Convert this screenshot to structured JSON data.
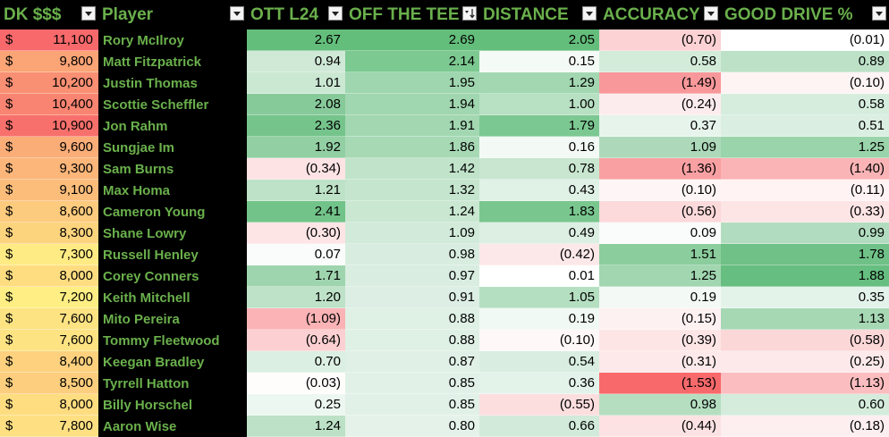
{
  "headers": [
    {
      "key": "dk",
      "label": "DK $$$",
      "filter": "dropdown"
    },
    {
      "key": "player",
      "label": "Player",
      "filter": "dropdown"
    },
    {
      "key": "ott_l24",
      "label": "OTT L24",
      "filter": "dropdown"
    },
    {
      "key": "off_the_tee",
      "label": "OFF THE TEE",
      "filter": "sort-descending"
    },
    {
      "key": "distance",
      "label": "DISTANCE",
      "filter": "dropdown"
    },
    {
      "key": "accuracy",
      "label": "ACCURACY",
      "filter": "dropdown"
    },
    {
      "key": "good_drive",
      "label": "GOOD DRIVE %",
      "filter": "dropdown"
    }
  ],
  "currency_symbol": "$",
  "colors": {
    "header_bg": "#000000",
    "header_text": "#6ab04c",
    "player_bg": "#000000",
    "player_text": "#6ab04c",
    "scale_low": "#f8696b",
    "scale_mid": "#ffffff",
    "scale_high": "#63be7b"
  },
  "rows": [
    {
      "dk": "11,100",
      "player": "Rory McIlroy",
      "ott_l24": "2.67",
      "off_the_tee": "2.69",
      "distance": "2.05",
      "accuracy": "(0.70)",
      "good_drive": "(0.01)",
      "fills": {
        "dk": "#f8696b",
        "ott_l24": "#63be7b",
        "off_the_tee": "#63be7b",
        "distance": "#63be7b",
        "accuracy": "#fcd2d4",
        "good_drive": "#ffffff"
      }
    },
    {
      "dk": "9,800",
      "player": "Matt Fitzpatrick",
      "ott_l24": "0.94",
      "off_the_tee": "2.14",
      "distance": "0.15",
      "accuracy": "0.58",
      "good_drive": "0.89",
      "fills": {
        "dk": "#fba476",
        "ott_l24": "#cfe9d6",
        "off_the_tee": "#7cc991",
        "distance": "#f4faf6",
        "accuracy": "#d3ecda",
        "good_drive": "#bde1c7"
      }
    },
    {
      "dk": "10,200",
      "player": "Justin Thomas",
      "ott_l24": "1.01",
      "off_the_tee": "1.95",
      "distance": "1.29",
      "accuracy": "(1.49)",
      "good_drive": "(0.10)",
      "fills": {
        "dk": "#f98f73",
        "ott_l24": "#cbe8d3",
        "off_the_tee": "#9fd6af",
        "distance": "#a3d7b2",
        "accuracy": "#f8989a",
        "good_drive": "#fff4f4"
      }
    },
    {
      "dk": "10,400",
      "player": "Scottie Scheffler",
      "ott_l24": "2.08",
      "off_the_tee": "1.94",
      "distance": "1.00",
      "accuracy": "(0.24)",
      "good_drive": "0.58",
      "fills": {
        "dk": "#f98471",
        "ott_l24": "#87ca9a",
        "off_the_tee": "#a0d6b0",
        "distance": "#b8e0c3",
        "accuracy": "#fdecee",
        "good_drive": "#d6edde"
      }
    },
    {
      "dk": "10,900",
      "player": "Jon Rahm",
      "ott_l24": "2.36",
      "off_the_tee": "1.91",
      "distance": "1.79",
      "accuracy": "0.37",
      "good_drive": "0.51",
      "fills": {
        "dk": "#f8706c",
        "ott_l24": "#75c48c",
        "off_the_tee": "#a2d7b1",
        "distance": "#7cc892",
        "accuracy": "#e7f4eb",
        "good_drive": "#daeee1"
      }
    },
    {
      "dk": "9,600",
      "player": "Sungjae Im",
      "ott_l24": "1.92",
      "off_the_tee": "1.86",
      "distance": "0.16",
      "accuracy": "1.09",
      "good_drive": "1.25",
      "fills": {
        "dk": "#fbad78",
        "ott_l24": "#92cfa3",
        "off_the_tee": "#a7d9b5",
        "distance": "#f3faf5",
        "accuracy": "#add9ba",
        "good_drive": "#9ad4aa"
      }
    },
    {
      "dk": "9,300",
      "player": "Sam Burns",
      "ott_l24": "(0.34)",
      "off_the_tee": "1.42",
      "distance": "0.78",
      "accuracy": "(1.36)",
      "good_drive": "(1.40)",
      "fills": {
        "dk": "#fcb67a",
        "ott_l24": "#fde3e4",
        "off_the_tee": "#c0e3ca",
        "distance": "#c8e6d0",
        "accuracy": "#f9a0a2",
        "good_drive": "#fab4b6"
      }
    },
    {
      "dk": "9,100",
      "player": "Max Homa",
      "ott_l24": "1.21",
      "off_the_tee": "1.32",
      "distance": "0.43",
      "accuracy": "(0.10)",
      "good_drive": "(0.11)",
      "fills": {
        "dk": "#fcbd7b",
        "ott_l24": "#bde2c7",
        "off_the_tee": "#c5e5ce",
        "distance": "#e0f1e6",
        "accuracy": "#fef6f6",
        "good_drive": "#fff3f3"
      }
    },
    {
      "dk": "8,600",
      "player": "Cameron Young",
      "ott_l24": "2.41",
      "off_the_tee": "1.24",
      "distance": "1.83",
      "accuracy": "(0.56)",
      "good_drive": "(0.33)",
      "fills": {
        "dk": "#fdcb7d",
        "ott_l24": "#72c389",
        "off_the_tee": "#c9e7d1",
        "distance": "#79c78f",
        "accuracy": "#fcd9da",
        "good_drive": "#fde4e5"
      }
    },
    {
      "dk": "8,300",
      "player": "Shane Lowry",
      "ott_l24": "(0.30)",
      "off_the_tee": "1.09",
      "distance": "0.49",
      "accuracy": "0.09",
      "good_drive": "0.99",
      "fills": {
        "dk": "#fdd47e",
        "ott_l24": "#fde5e6",
        "off_the_tee": "#d2eada",
        "distance": "#ddefe3",
        "accuracy": "#f9fcfa",
        "good_drive": "#b2dcbf"
      }
    },
    {
      "dk": "7,300",
      "player": "Russell Henley",
      "ott_l24": "0.07",
      "off_the_tee": "0.98",
      "distance": "(0.42)",
      "accuracy": "1.51",
      "good_drive": "1.78",
      "fills": {
        "dk": "#ffeb84",
        "ott_l24": "#fafcfb",
        "off_the_tee": "#d8ede0",
        "distance": "#fde8e9",
        "accuracy": "#8ccd9e",
        "good_drive": "#6fc188"
      }
    },
    {
      "dk": "8,000",
      "player": "Corey Conners",
      "ott_l24": "1.71",
      "off_the_tee": "0.97",
      "distance": "0.01",
      "accuracy": "1.25",
      "good_drive": "1.88",
      "fills": {
        "dk": "#fedd81",
        "ott_l24": "#9fd5ae",
        "off_the_tee": "#d9ede1",
        "distance": "#fefffe",
        "accuracy": "#a1d6b0",
        "good_drive": "#66bf80"
      }
    },
    {
      "dk": "7,200",
      "player": "Keith Mitchell",
      "ott_l24": "1.20",
      "off_the_tee": "0.91",
      "distance": "1.05",
      "accuracy": "0.19",
      "good_drive": "0.35",
      "fills": {
        "dk": "#ffee84",
        "ott_l24": "#bee2c8",
        "off_the_tee": "#ddeee4",
        "distance": "#b5dfc1",
        "accuracy": "#f3f9f5",
        "good_drive": "#e4f3ea"
      }
    },
    {
      "dk": "7,600",
      "player": "Mito Pereira",
      "ott_l24": "(1.09)",
      "off_the_tee": "0.88",
      "distance": "0.19",
      "accuracy": "(0.15)",
      "good_drive": "1.13",
      "fills": {
        "dk": "#fee383",
        "ott_l24": "#fbb3b5",
        "off_the_tee": "#dff0e5",
        "distance": "#f1f9f4",
        "accuracy": "#fef1f2",
        "good_drive": "#a6d8b4"
      }
    },
    {
      "dk": "7,600",
      "player": "Tommy Fleetwood",
      "ott_l24": "(0.64)",
      "off_the_tee": "0.88",
      "distance": "(0.10)",
      "accuracy": "(0.39)",
      "good_drive": "(0.58)",
      "fills": {
        "dk": "#fee383",
        "ott_l24": "#fcd0d2",
        "off_the_tee": "#dff0e5",
        "distance": "#fff8f8",
        "accuracy": "#fde5e6",
        "good_drive": "#fcd7d8"
      }
    },
    {
      "dk": "8,400",
      "player": "Keegan Bradley",
      "ott_l24": "0.70",
      "off_the_tee": "0.87",
      "distance": "0.54",
      "accuracy": "(0.31)",
      "good_drive": "(0.25)",
      "fills": {
        "dk": "#fdd17e",
        "ott_l24": "#dcefe3",
        "off_the_tee": "#e0f0e6",
        "distance": "#d9eee1",
        "accuracy": "#fde9ea",
        "good_drive": "#fde9ea"
      }
    },
    {
      "dk": "8,500",
      "player": "Tyrrell Hatton",
      "ott_l24": "(0.03)",
      "off_the_tee": "0.85",
      "distance": "0.36",
      "accuracy": "(1.53)",
      "good_drive": "(1.13)",
      "fills": {
        "dk": "#fdce7d",
        "ott_l24": "#fffcfc",
        "off_the_tee": "#e1f1e7",
        "distance": "#e4f3ea",
        "accuracy": "#f8696b",
        "good_drive": "#fbbdbf"
      }
    },
    {
      "dk": "8,000",
      "player": "Billy Horschel",
      "ott_l24": "0.25",
      "off_the_tee": "0.85",
      "distance": "(0.55)",
      "accuracy": "0.98",
      "good_drive": "0.60",
      "fills": {
        "dk": "#fedd81",
        "ott_l24": "#edf7f1",
        "off_the_tee": "#e1f1e7",
        "distance": "#fcdedf",
        "accuracy": "#b5dec1",
        "good_drive": "#d5ecdd"
      }
    },
    {
      "dk": "7,800",
      "player": "Aaron Wise",
      "ott_l24": "1.24",
      "off_the_tee": "0.80",
      "distance": "0.66",
      "accuracy": "(0.44)",
      "good_drive": "(0.18)",
      "fills": {
        "dk": "#fee082",
        "ott_l24": "#bce1c6",
        "off_the_tee": "#e4f2e9",
        "distance": "#d1eada",
        "accuracy": "#fde2e3",
        "good_drive": "#fdeeef"
      }
    }
  ]
}
